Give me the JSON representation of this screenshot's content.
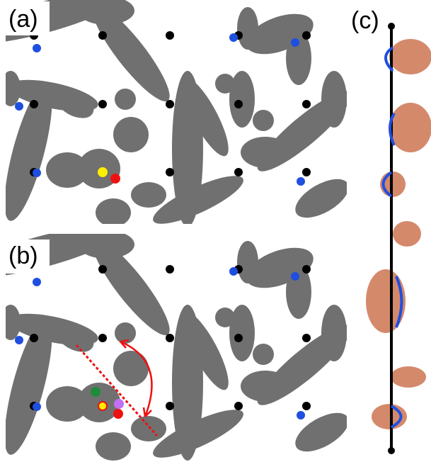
{
  "panels": {
    "a": {
      "label": "(a)"
    },
    "b": {
      "label": "(b)"
    },
    "c": {
      "label": "(c)"
    }
  }
}
